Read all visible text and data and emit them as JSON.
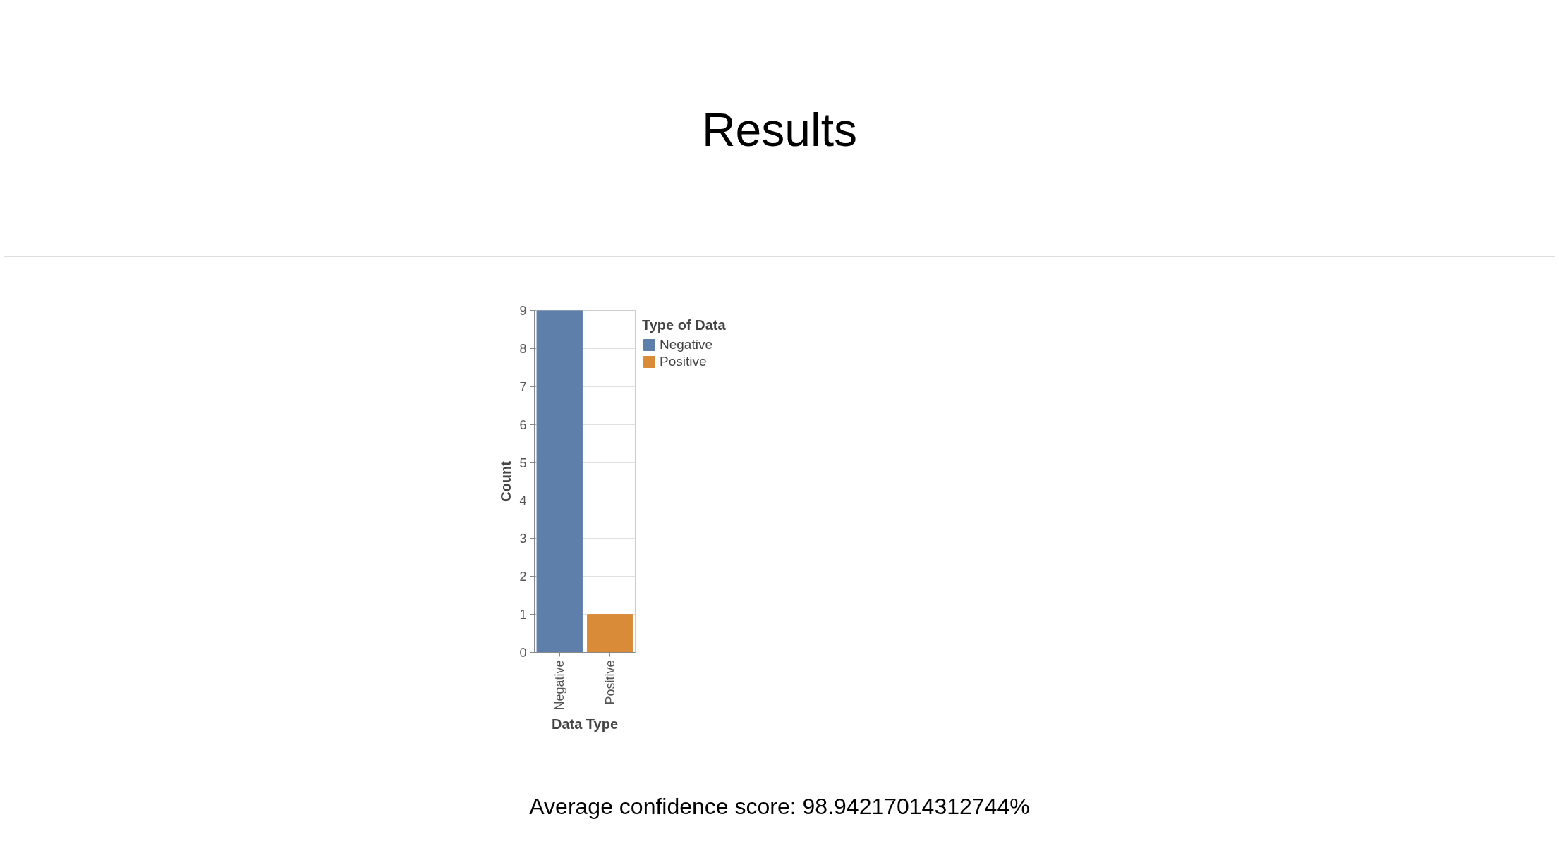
{
  "chart_data": {
    "type": "bar",
    "title": "Results",
    "categories": [
      "Negative",
      "Positive"
    ],
    "series": [
      {
        "name": "Negative",
        "color": "#5f7fab",
        "values": [
          9,
          null
        ]
      },
      {
        "name": "Positive",
        "color": "#d98b38",
        "values": [
          null,
          1
        ]
      }
    ],
    "xlabel": "Data Type",
    "ylabel": "Count",
    "legend_title": "Type of Data",
    "ylim": [
      0,
      9
    ],
    "yticks": [
      0,
      1,
      2,
      3,
      4,
      5,
      6,
      7,
      8,
      9
    ],
    "grid": "y",
    "legend": "top right",
    "annotations": [
      "Average confidence score: 98.94217014312744%"
    ]
  }
}
